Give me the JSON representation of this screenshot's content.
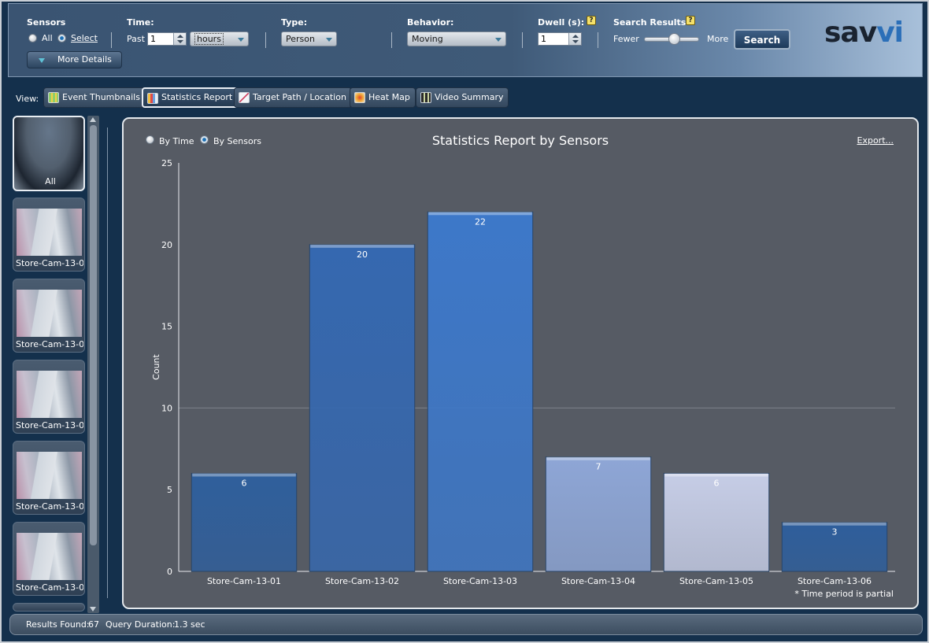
{
  "toolbar": {
    "sensors_label": "Sensors",
    "sensors_all": "All",
    "sensors_select": "Select",
    "more_details": "More Details",
    "time_label": "Time:",
    "time_past": "Past",
    "time_value": "1",
    "time_unit": "hours",
    "type_label": "Type:",
    "type_value": "Person",
    "behavior_label": "Behavior:",
    "behavior_value": "Moving",
    "dwell_label": "Dwell (s):",
    "dwell_value": "1",
    "search_results_label": "Search Results:",
    "fewer": "Fewer",
    "more": "More",
    "results_level": 0.55,
    "search_button": "Search",
    "help_glyph": "?"
  },
  "logo": {
    "part1": "sav",
    "part2": "vi"
  },
  "view": {
    "label": "View:",
    "buttons": [
      {
        "label": "Event Thumbnails",
        "icon": "grid-icon",
        "active": false
      },
      {
        "label": "Statistics Report",
        "icon": "bar-chart-icon",
        "active": true
      },
      {
        "label": "Target Path / Location",
        "icon": "path-icon",
        "active": false
      },
      {
        "label": "Heat Map",
        "icon": "heatmap-icon",
        "active": false
      },
      {
        "label": "Video Summary",
        "icon": "film-icon",
        "active": false
      }
    ]
  },
  "sidebar": {
    "all_label": "All",
    "thumbnails": [
      {
        "label": "Store-Cam-13-0"
      },
      {
        "label": "Store-Cam-13-0"
      },
      {
        "label": "Store-Cam-13-0"
      },
      {
        "label": "Store-Cam-13-0"
      },
      {
        "label": "Store-Cam-13-0"
      }
    ]
  },
  "chart_panel": {
    "by_time": "By Time",
    "by_sensors": "By Sensors",
    "export": "Export...",
    "footnote": "* Time period is partial"
  },
  "chart_data": {
    "type": "bar",
    "title": "Statistics Report by Sensors",
    "xlabel": "",
    "ylabel": "Count",
    "ylim": [
      0,
      25
    ],
    "yticks": [
      0,
      5,
      10,
      15,
      20,
      25
    ],
    "gridlines": [
      10
    ],
    "categories": [
      "Store-Cam-13-01",
      "Store-Cam-13-02",
      "Store-Cam-13-03",
      "Store-Cam-13-04",
      "Store-Cam-13-05",
      "Store-Cam-13-06"
    ],
    "values": [
      6,
      20,
      22,
      7,
      6,
      3
    ],
    "colors": [
      "#2f5f9c",
      "#3568b0",
      "#3d78c9",
      "#8ea6d6",
      "#c6cde6",
      "#2e5e9c"
    ]
  },
  "status": {
    "results_label": "Results Found:",
    "results_value": "67",
    "duration_label": "Query Duration:",
    "duration_value": "1.3 sec"
  }
}
